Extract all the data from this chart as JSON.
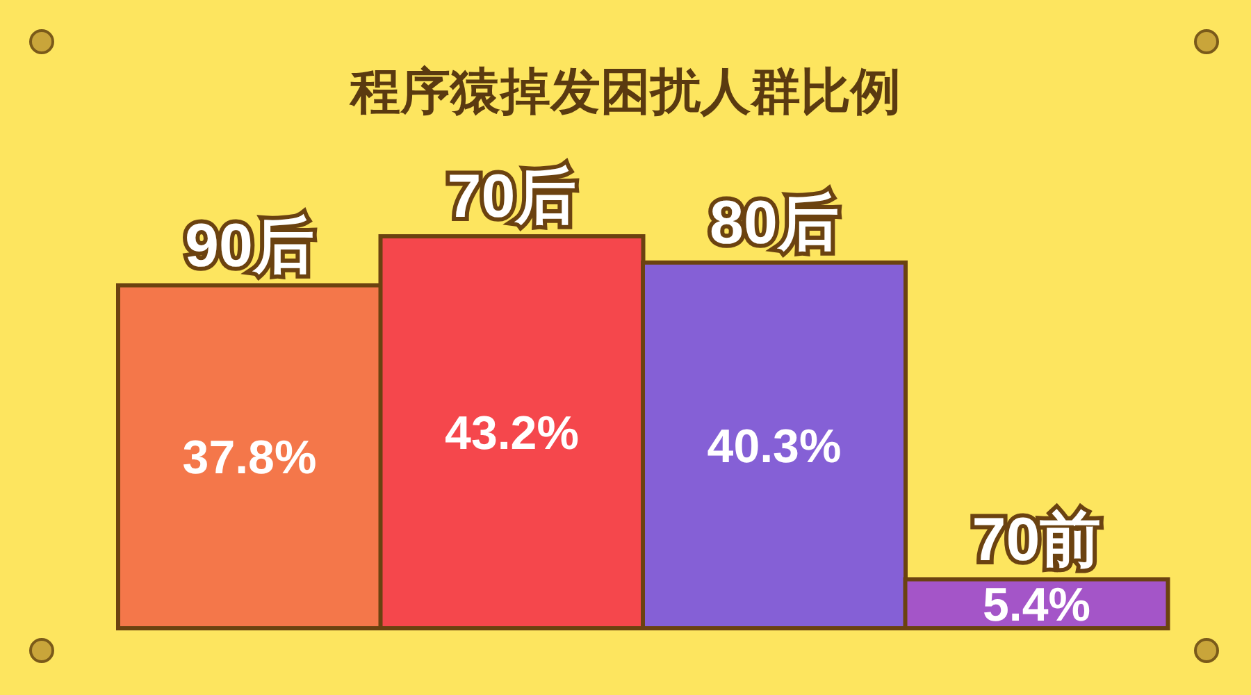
{
  "chart_data": {
    "type": "bar",
    "title": "程序猿掉发困扰人群比例",
    "categories": [
      "90后",
      "70后",
      "80后",
      "70前"
    ],
    "values": [
      37.8,
      43.2,
      40.3,
      5.4
    ],
    "colors": [
      "#f4774a",
      "#f5474c",
      "#8560d6",
      "#a455c8"
    ],
    "data_labels": true,
    "value_labels": [
      "37.8%",
      "43.2%",
      "40.3%",
      "5.4%"
    ],
    "grid": false,
    "legend": false
  }
}
